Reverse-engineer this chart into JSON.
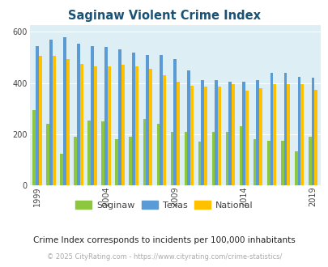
{
  "title": "Saginaw Violent Crime Index",
  "subtitle": "Crime Index corresponds to incidents per 100,000 inhabitants",
  "footer": "© 2025 CityRating.com - https://www.cityrating.com/crime-statistics/",
  "years": [
    1999,
    2000,
    2001,
    2002,
    2003,
    2004,
    2005,
    2006,
    2007,
    2008,
    2009,
    2010,
    2011,
    2012,
    2013,
    2014,
    2015,
    2016,
    2017,
    2018,
    2019
  ],
  "saginaw": [
    295,
    240,
    125,
    190,
    255,
    250,
    180,
    190,
    260,
    240,
    210,
    210,
    170,
    210,
    210,
    230,
    180,
    175,
    175,
    135,
    190
  ],
  "texas": [
    545,
    570,
    580,
    555,
    545,
    540,
    530,
    520,
    510,
    510,
    495,
    450,
    410,
    410,
    405,
    405,
    410,
    440,
    440,
    425,
    420
  ],
  "national": [
    505,
    505,
    495,
    475,
    465,
    465,
    470,
    465,
    455,
    430,
    405,
    390,
    385,
    385,
    395,
    370,
    380,
    395,
    395,
    395,
    375
  ],
  "bar_colors": {
    "saginaw": "#8dc63f",
    "texas": "#5b9bd5",
    "national": "#ffc000"
  },
  "plot_background": "#ddeef4",
  "title_color": "#1a5276",
  "ylim": [
    0,
    625
  ],
  "yticks": [
    0,
    200,
    400,
    600
  ],
  "xlabel_years": [
    1999,
    2004,
    2009,
    2014,
    2019
  ],
  "grid_color": "#ffffff"
}
